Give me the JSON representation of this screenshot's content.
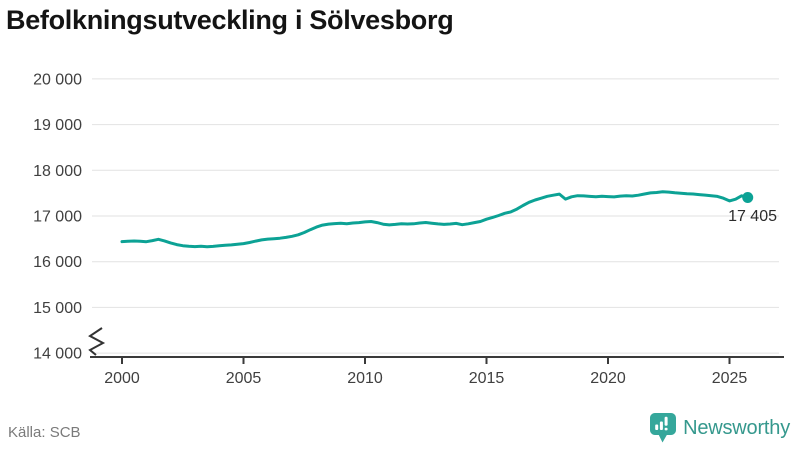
{
  "title": "Befolkningsutveckling i Sölvesborg",
  "source": "Källa: SCB",
  "logo": {
    "text": "Newsworthy",
    "icon_color": "#35a79b",
    "text_color": "#35988d"
  },
  "chart_data": {
    "type": "line",
    "title": "Befolkningsutveckling i Sölvesborg",
    "series_name": "Befolkning",
    "line_color": "#0ca295",
    "grid": true,
    "legend": "none",
    "axis_break": true,
    "ylim": [
      14000,
      20000
    ],
    "xlim": [
      2000,
      2026
    ],
    "y_ticks": [
      20000,
      19000,
      18000,
      17000,
      16000,
      15000,
      14000
    ],
    "y_tick_labels": [
      "20 000",
      "19 000",
      "18 000",
      "17 000",
      "16 000",
      "15 000",
      "14 000"
    ],
    "x_ticks": [
      2000,
      2005,
      2010,
      2015,
      2020,
      2025
    ],
    "x_tick_labels": [
      "2000",
      "2005",
      "2010",
      "2015",
      "2020",
      "2025"
    ],
    "end_label": "17 405",
    "last_value": 17405,
    "x_start": 2000.0,
    "x_step": 0.25,
    "values": [
      16440,
      16448,
      16452,
      16446,
      16438,
      16462,
      16490,
      16455,
      16412,
      16375,
      16350,
      16338,
      16330,
      16337,
      16329,
      16335,
      16348,
      16358,
      16368,
      16382,
      16396,
      16420,
      16450,
      16478,
      16495,
      16504,
      16514,
      16532,
      16556,
      16588,
      16640,
      16700,
      16758,
      16800,
      16822,
      16834,
      16840,
      16832,
      16846,
      16856,
      16870,
      16880,
      16856,
      16820,
      16806,
      16816,
      16832,
      16824,
      16830,
      16846,
      16858,
      16842,
      16828,
      16816,
      16826,
      16838,
      16810,
      16830,
      16856,
      16880,
      16930,
      16970,
      17010,
      17060,
      17090,
      17150,
      17230,
      17300,
      17350,
      17390,
      17430,
      17455,
      17480,
      17370,
      17420,
      17445,
      17440,
      17428,
      17420,
      17432,
      17425,
      17418,
      17435,
      17442,
      17438,
      17455,
      17482,
      17505,
      17515,
      17530,
      17522,
      17508,
      17498,
      17488,
      17482,
      17468,
      17458,
      17444,
      17428,
      17390,
      17330,
      17368,
      17442,
      17405
    ]
  }
}
